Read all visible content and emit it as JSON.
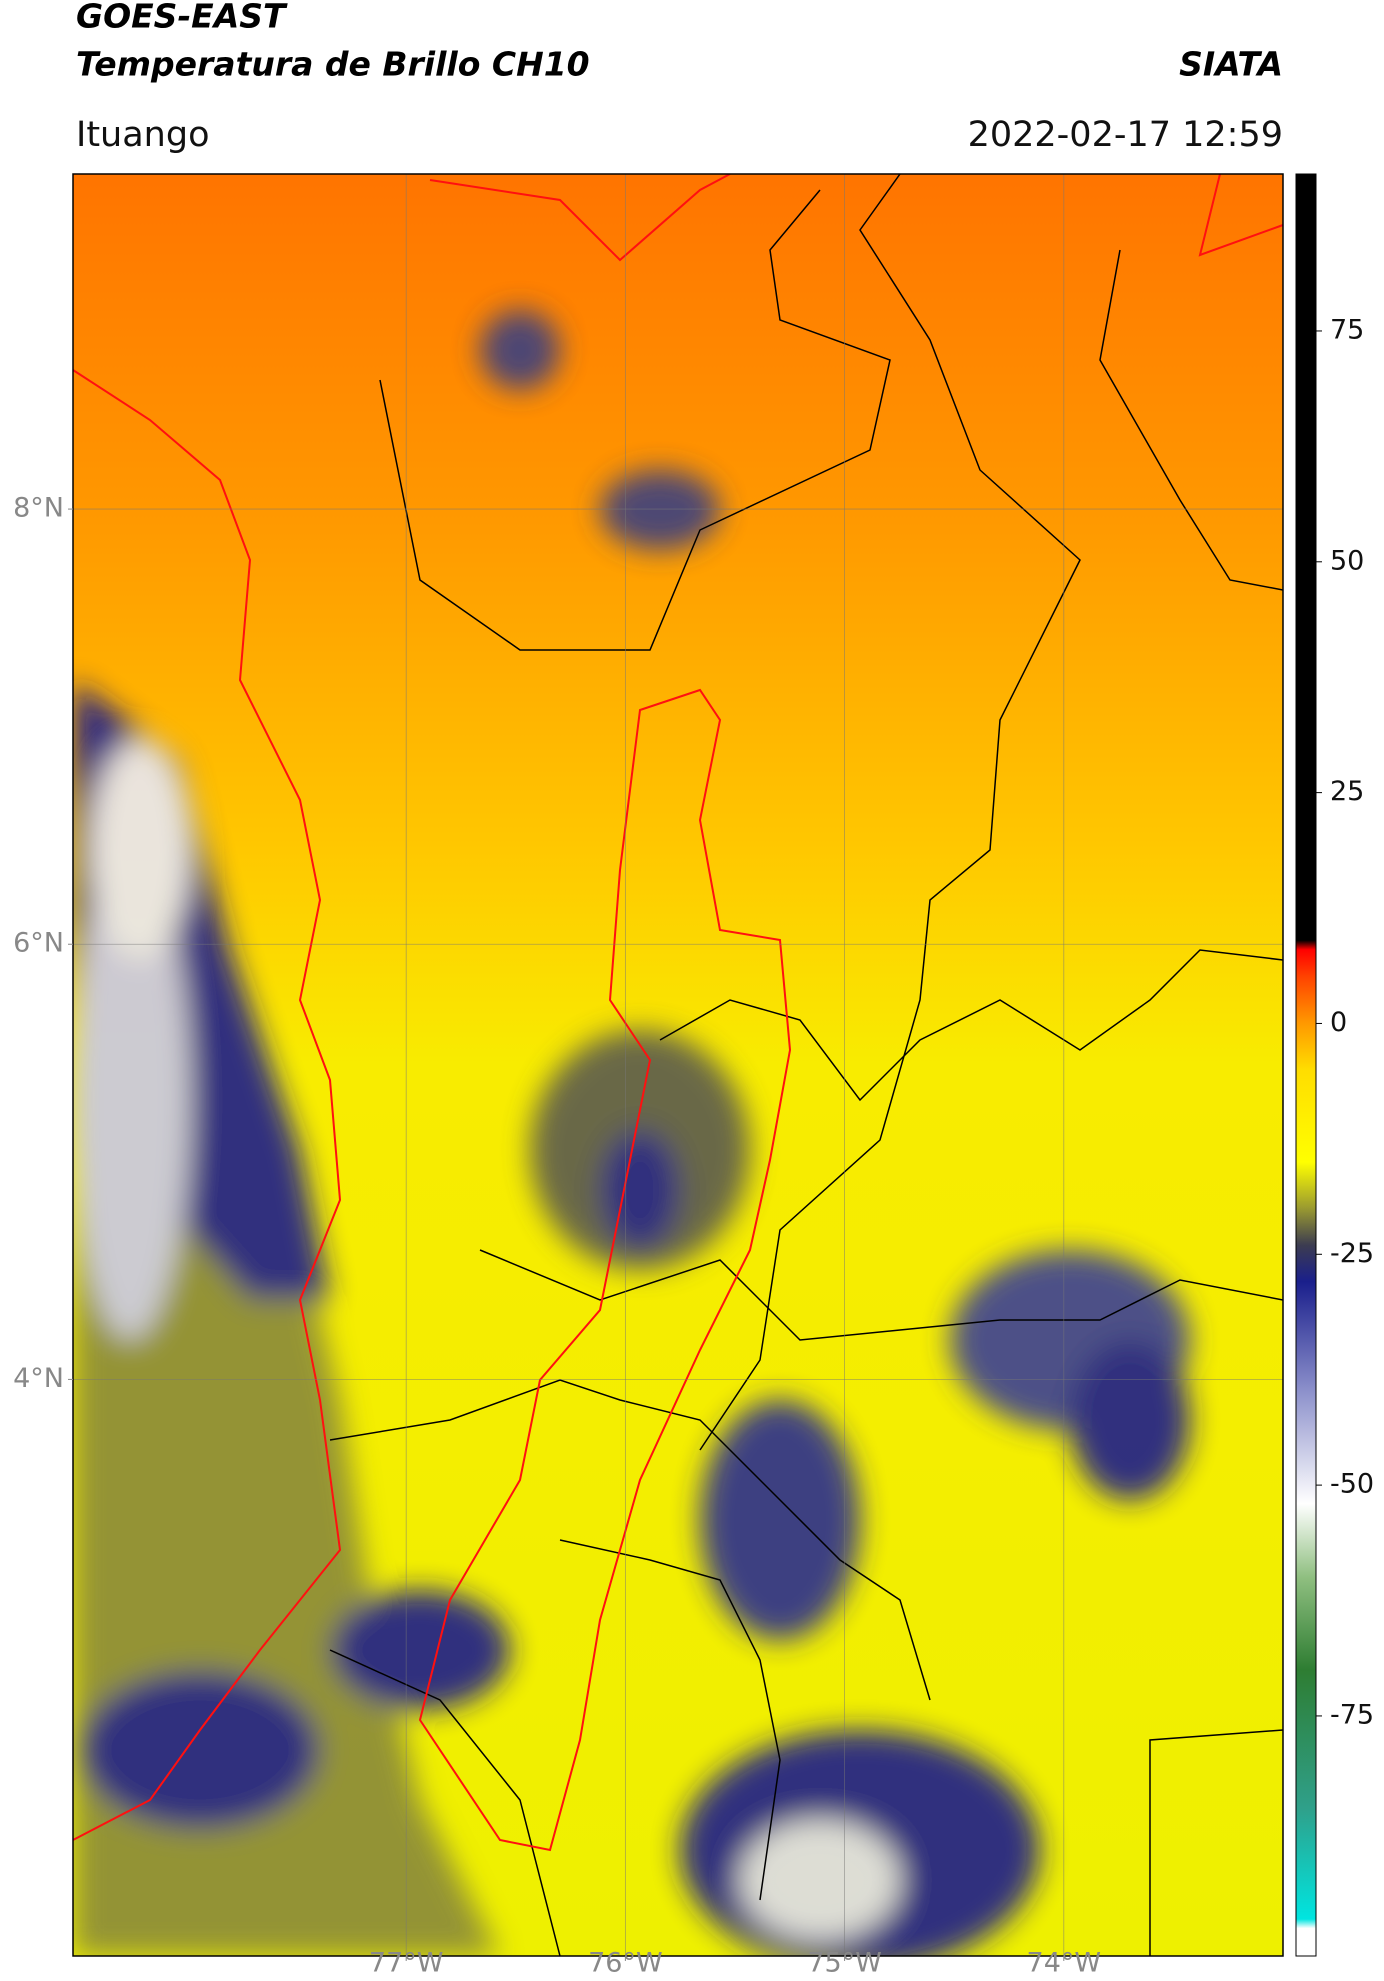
{
  "header": {
    "title": "GOES-EAST",
    "subtitle": "Temperatura de Brillo CH10",
    "source": "SIATA",
    "location": "Ituango",
    "datetime": "2022-02-17 12:59"
  },
  "map": {
    "xlim": [
      -78.52,
      -73.0
    ],
    "ylim": [
      1.35,
      9.54
    ],
    "xticks": [
      {
        "value": -77,
        "label": "77°W"
      },
      {
        "value": -76,
        "label": "76°W"
      },
      {
        "value": -75,
        "label": "75°W"
      },
      {
        "value": -74,
        "label": "74°W"
      }
    ],
    "yticks": [
      {
        "value": 8,
        "label": "8°N"
      },
      {
        "value": 6,
        "label": "6°N"
      },
      {
        "value": 4,
        "label": "4°N"
      }
    ],
    "grid": true
  },
  "colorbar": {
    "clim": [
      -101,
      92
    ],
    "ticks": [
      75,
      50,
      25,
      0,
      -25,
      -50,
      -75
    ],
    "colormap": [
      {
        "value": -101,
        "color": "#ffffff"
      },
      {
        "value": -98,
        "color": "#ffffff"
      },
      {
        "value": -97,
        "color": "#00e5e0"
      },
      {
        "value": -85,
        "color": "#2fa08a"
      },
      {
        "value": -70,
        "color": "#2e7d32"
      },
      {
        "value": -60,
        "color": "#8fbf80"
      },
      {
        "value": -52,
        "color": "#ffffff"
      },
      {
        "value": -40,
        "color": "#8e92cc"
      },
      {
        "value": -28,
        "color": "#1a1f8c"
      },
      {
        "value": -24,
        "color": "#3c3c50"
      },
      {
        "value": -20,
        "color": "#9a9a30"
      },
      {
        "value": -15,
        "color": "#ffff00"
      },
      {
        "value": -5,
        "color": "#ffdd00"
      },
      {
        "value": 0,
        "color": "#ff9900"
      },
      {
        "value": 5,
        "color": "#ff4400"
      },
      {
        "value": 8,
        "color": "#ff0000"
      },
      {
        "value": 9,
        "color": "#000000"
      },
      {
        "value": 92,
        "color": "#000000"
      }
    ]
  }
}
